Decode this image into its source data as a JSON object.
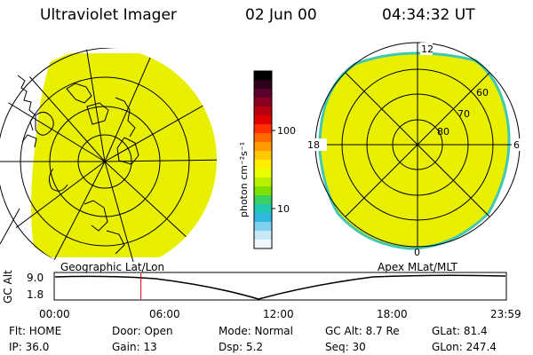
{
  "header": {
    "instrument": "Ultraviolet Imager",
    "date": "02 Jun 00",
    "time": "04:34:32 UT"
  },
  "left_panel": {
    "caption": "Geographic Lat/Lon"
  },
  "right_panel": {
    "caption": "Apex MLat/MLT",
    "mlt_labels": {
      "top": "12",
      "left": "18",
      "right": "6",
      "bottom": "0"
    },
    "lat_labels": [
      "60",
      "70",
      "80"
    ]
  },
  "colorbar": {
    "unit_label": "photon cm⁻²s⁻¹",
    "tick_labels": [
      "100",
      "10"
    ],
    "colors": [
      "#000000",
      "#2b0018",
      "#5a002a",
      "#8a0020",
      "#b80010",
      "#e00000",
      "#ff3000",
      "#ff6a00",
      "#ff9a00",
      "#ffc800",
      "#ffee00",
      "#e8ff00",
      "#b8f000",
      "#7de000",
      "#3cd060",
      "#20c8b0",
      "#30b8e0",
      "#80d0f0",
      "#c8e8f8",
      "#f0f8ff"
    ]
  },
  "altitude_plot": {
    "ylabel": "GC Alt",
    "y_ticks": [
      "9.0",
      "1.8"
    ],
    "x_ticks": [
      "00:00",
      "06:00",
      "12:00",
      "18:00",
      "23:59"
    ],
    "current_marker_time": "04:34"
  },
  "footer": {
    "flt": "Flt: HOME",
    "door": "Door: Open",
    "mode": "Mode: Normal",
    "gc_alt": "GC Alt: 8.7 Re",
    "glat": "GLat:  81.4",
    "ip": "IP: 36.0",
    "gain": "Gain: 13",
    "dsp": "Dsp:    5.2",
    "seq": "Seq: 30",
    "glon": "GLon: 247.4"
  },
  "colors": {
    "aurora_fill": "#e8f000",
    "aurora_edge": "#40c8b0",
    "marker": "#d00000"
  }
}
